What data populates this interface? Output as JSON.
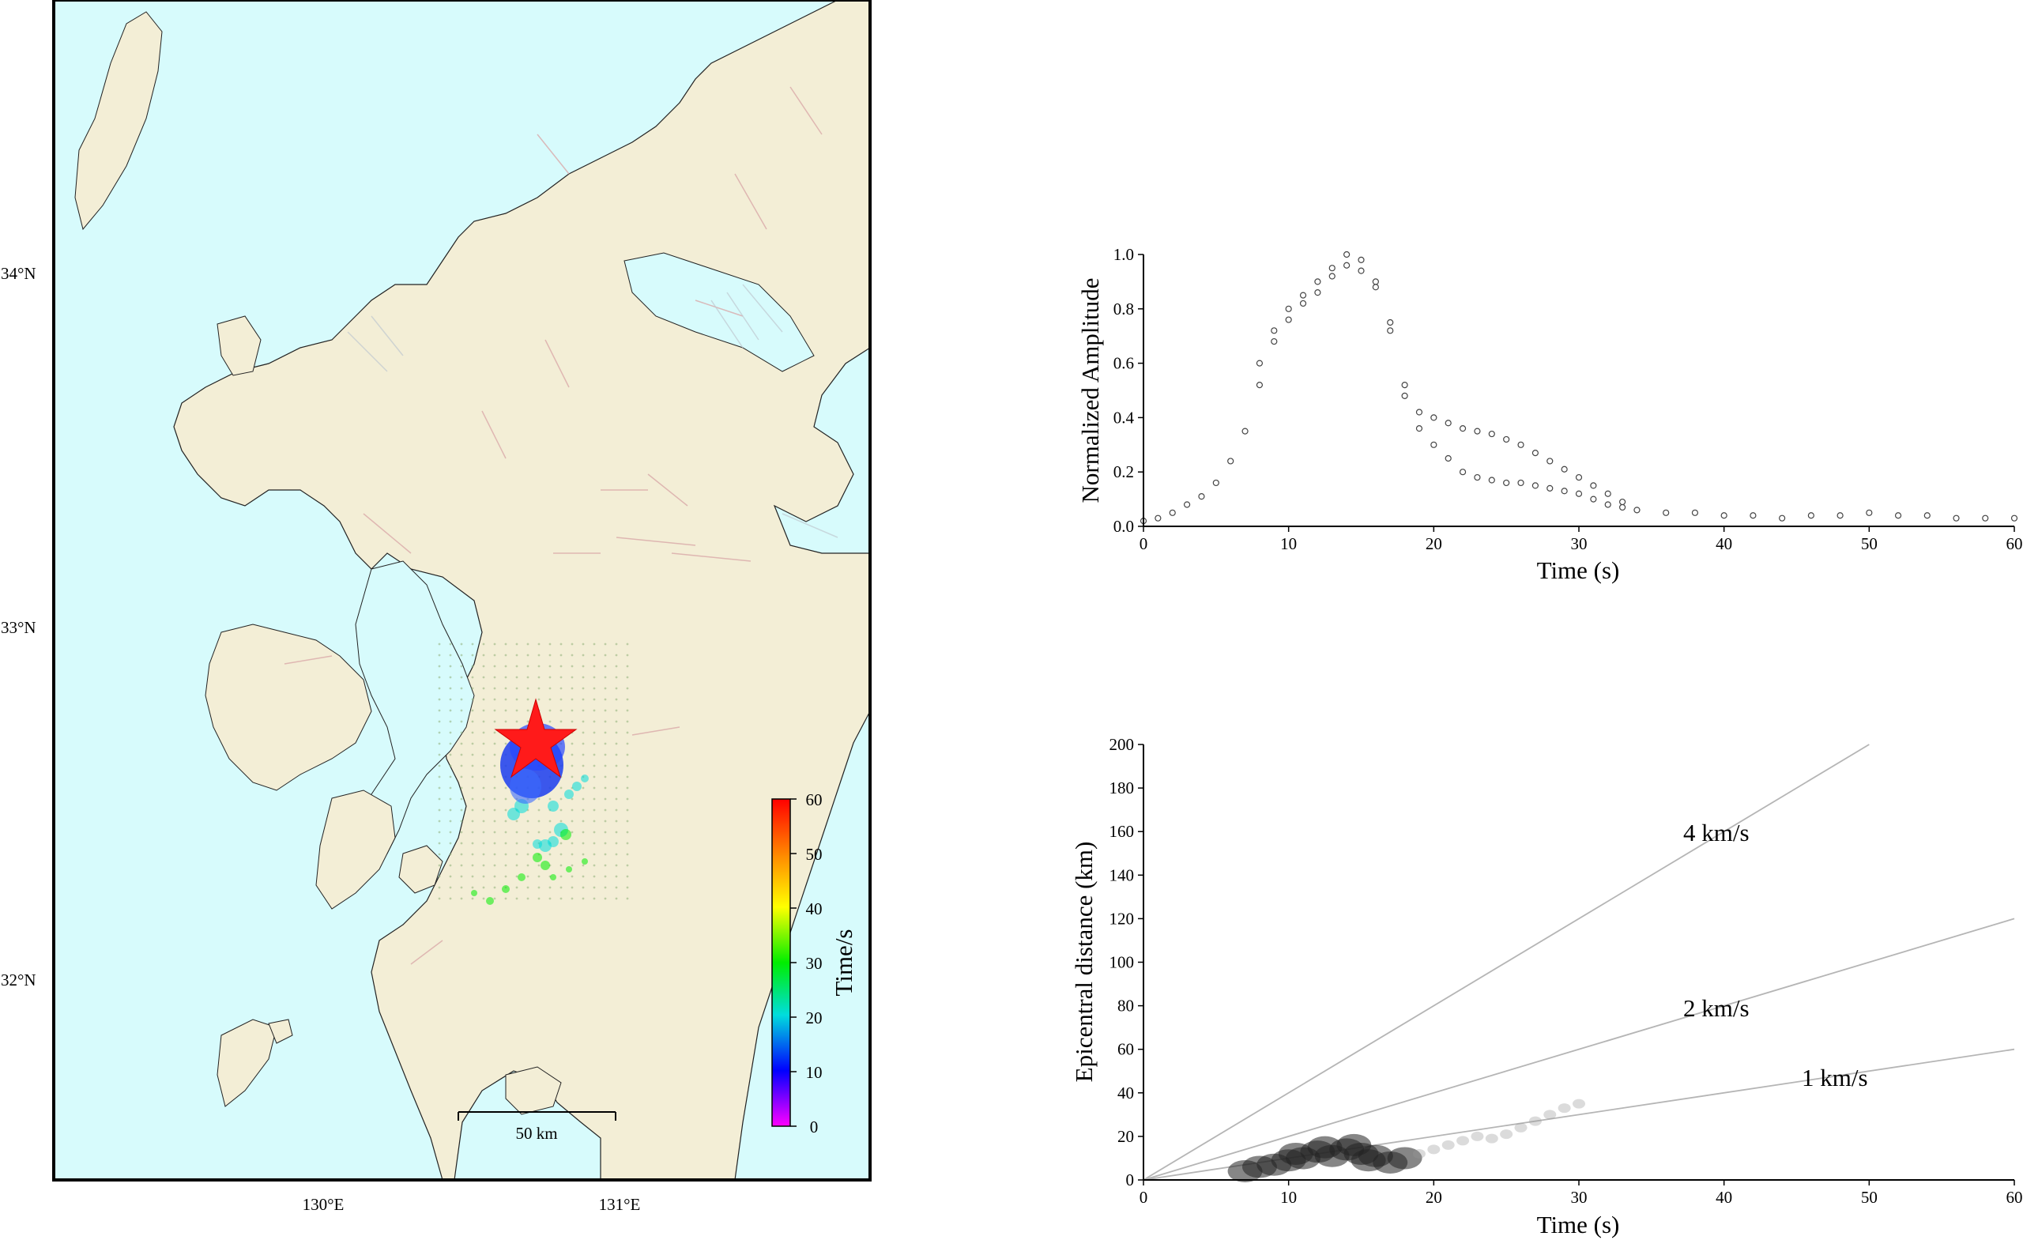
{
  "map": {
    "lat_labels": [
      "34°N",
      "33°N",
      "32°N"
    ],
    "lon_labels": [
      "130°E",
      "131°E"
    ],
    "scalebar_label": "50 km",
    "colorbar": {
      "title": "Time/s",
      "ticks": [
        "60",
        "50",
        "40",
        "30",
        "20",
        "10",
        "0"
      ],
      "colors": [
        "#ff0000",
        "#ff8800",
        "#ffff00",
        "#00ee00",
        "#00dddd",
        "#0000ff",
        "#ff00ff"
      ]
    },
    "epicenter_marker": "red-star",
    "land_color": "#f3eed6",
    "sea_color": "#d7fbfc"
  },
  "chart_data": [
    {
      "type": "scatter",
      "xlabel": "Time (s)",
      "ylabel": "Normalized Amplitude",
      "xlim": [
        0,
        60
      ],
      "ylim": [
        0,
        1.0
      ],
      "xticks": [
        "0",
        "10",
        "20",
        "30",
        "40",
        "50",
        "60"
      ],
      "yticks": [
        "0.0",
        "0.2",
        "0.4",
        "0.6",
        "0.8",
        "1.0"
      ],
      "series": [
        {
          "x": [
            0,
            1,
            2,
            3,
            4,
            5,
            6,
            7,
            8,
            9,
            10,
            11,
            12,
            13,
            14,
            15,
            16,
            17,
            18,
            19,
            20,
            21,
            22,
            23,
            24,
            25,
            26,
            27,
            28,
            29,
            30,
            31,
            32,
            33,
            34,
            36,
            38,
            40,
            42,
            44,
            46,
            48,
            50,
            52,
            54,
            56,
            58,
            60
          ],
          "y": [
            0.02,
            0.03,
            0.05,
            0.08,
            0.11,
            0.16,
            0.24,
            0.35,
            0.52,
            0.68,
            0.76,
            0.82,
            0.86,
            0.92,
            0.96,
            0.94,
            0.88,
            0.72,
            0.52,
            0.42,
            0.4,
            0.38,
            0.36,
            0.35,
            0.34,
            0.32,
            0.3,
            0.27,
            0.24,
            0.21,
            0.18,
            0.15,
            0.12,
            0.09,
            0.06,
            0.05,
            0.05,
            0.04,
            0.04,
            0.03,
            0.04,
            0.04,
            0.05,
            0.04,
            0.04,
            0.03,
            0.03,
            0.03
          ]
        },
        {
          "x": [
            8,
            9,
            10,
            11,
            12,
            13,
            14,
            15,
            16,
            17,
            18,
            19,
            20,
            21,
            22,
            23,
            24,
            25,
            26,
            27,
            28,
            29,
            30,
            31,
            32,
            33
          ],
          "y": [
            0.6,
            0.72,
            0.8,
            0.85,
            0.9,
            0.95,
            1.0,
            0.98,
            0.9,
            0.75,
            0.48,
            0.36,
            0.3,
            0.25,
            0.2,
            0.18,
            0.17,
            0.16,
            0.16,
            0.15,
            0.14,
            0.13,
            0.12,
            0.1,
            0.08,
            0.07
          ]
        }
      ]
    },
    {
      "type": "scatter",
      "xlabel": "Time (s)",
      "ylabel": "Epicentral distance (km)",
      "xlim": [
        0,
        60
      ],
      "ylim": [
        0,
        200
      ],
      "xticks": [
        "0",
        "10",
        "20",
        "30",
        "40",
        "50",
        "60"
      ],
      "yticks": [
        "0",
        "20",
        "40",
        "60",
        "80",
        "100",
        "120",
        "140",
        "160",
        "180",
        "200"
      ],
      "reference_lines": [
        {
          "label": "4 km/s",
          "slope": 4
        },
        {
          "label": "2 km/s",
          "slope": 2
        },
        {
          "label": "1 km/s",
          "slope": 1
        }
      ],
      "points": [
        {
          "x": 7,
          "y": 4
        },
        {
          "x": 8,
          "y": 6
        },
        {
          "x": 9,
          "y": 7
        },
        {
          "x": 10,
          "y": 9
        },
        {
          "x": 10.5,
          "y": 12
        },
        {
          "x": 11,
          "y": 10
        },
        {
          "x": 12,
          "y": 13
        },
        {
          "x": 12.5,
          "y": 15
        },
        {
          "x": 13,
          "y": 11
        },
        {
          "x": 14,
          "y": 14
        },
        {
          "x": 14.5,
          "y": 16
        },
        {
          "x": 15,
          "y": 12
        },
        {
          "x": 15.5,
          "y": 9
        },
        {
          "x": 16,
          "y": 11
        },
        {
          "x": 17,
          "y": 8
        },
        {
          "x": 18,
          "y": 10
        },
        {
          "x": 19,
          "y": 12
        },
        {
          "x": 20,
          "y": 14
        },
        {
          "x": 21,
          "y": 16
        },
        {
          "x": 22,
          "y": 18
        },
        {
          "x": 23,
          "y": 20
        },
        {
          "x": 24,
          "y": 19
        },
        {
          "x": 25,
          "y": 21
        },
        {
          "x": 26,
          "y": 24
        },
        {
          "x": 27,
          "y": 27
        },
        {
          "x": 28,
          "y": 30
        },
        {
          "x": 29,
          "y": 33
        },
        {
          "x": 30,
          "y": 35
        }
      ]
    }
  ]
}
